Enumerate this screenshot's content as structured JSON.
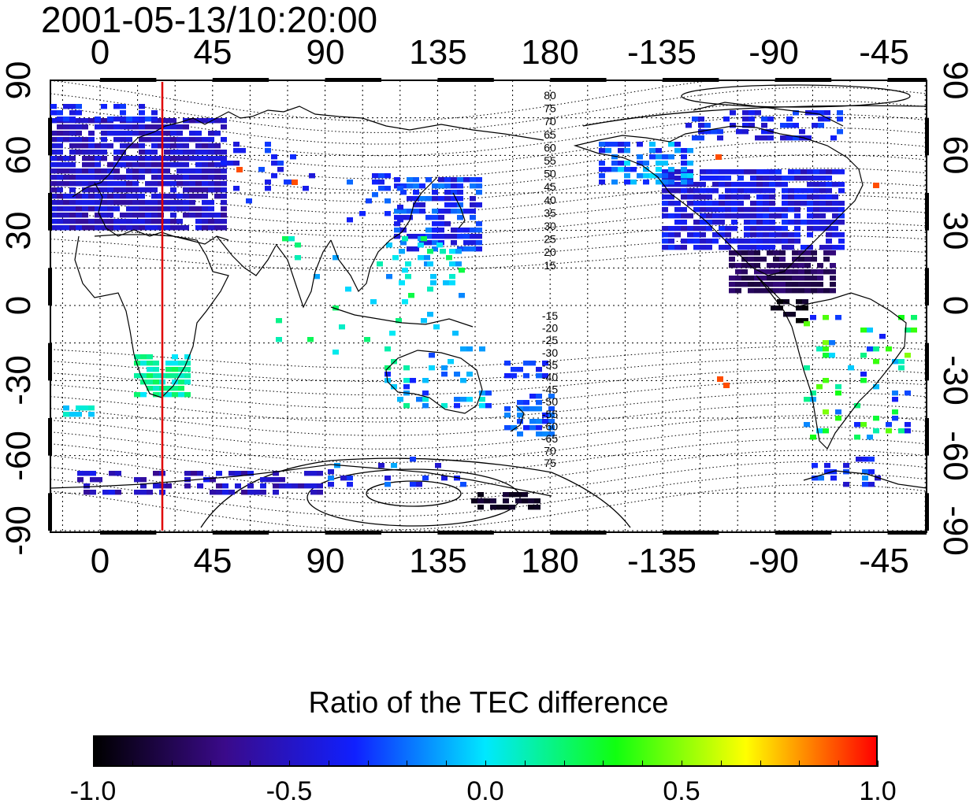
{
  "title": "2001-05-13/10:20:00",
  "map": {
    "longitude_ticks_top": [
      "0",
      "45",
      "90",
      "135",
      "180",
      "-135",
      "-90",
      "-45"
    ],
    "longitude_ticks_bottom": [
      "0",
      "45",
      "90",
      "135",
      "180",
      "-135",
      "-90",
      "-45"
    ],
    "latitude_ticks_left": [
      "90",
      "60",
      "30",
      "0",
      "-30",
      "-60",
      "-90"
    ],
    "latitude_ticks_right": [
      "90",
      "60",
      "30",
      "0",
      "-30",
      "-60",
      "-90"
    ],
    "contour_labels_north": [
      "80",
      "75",
      "70",
      "65",
      "60",
      "55",
      "50",
      "45",
      "40",
      "35",
      "30",
      "25",
      "20",
      "15"
    ],
    "contour_labels_south": [
      "-15",
      "-20",
      "-25",
      "-30",
      "-35",
      "-40",
      "-45",
      "-50",
      "-55",
      "-60",
      "-65",
      "70",
      "75"
    ],
    "marker_line_color": "#e00000"
  },
  "colorbar": {
    "title": "Ratio of the TEC difference",
    "labels": [
      "-1.0",
      "-0.5",
      "0.0",
      "0.5",
      "1.0"
    ],
    "stops": [
      "#000000",
      "#3a0a8a",
      "#1020ff",
      "#00e8ff",
      "#10ff10",
      "#ffff00",
      "#ff0000"
    ]
  }
}
